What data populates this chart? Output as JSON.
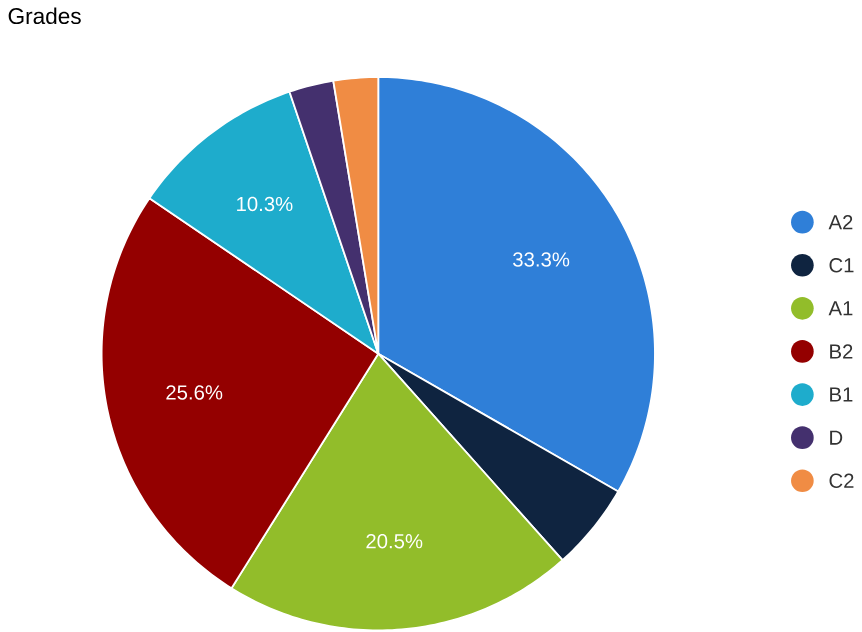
{
  "chart_data": {
    "type": "pie",
    "title": "Grades",
    "categories": [
      "A2",
      "C1",
      "A1",
      "B2",
      "B1",
      "D",
      "C2"
    ],
    "values": [
      33.3,
      5.1,
      20.5,
      25.6,
      10.3,
      2.6,
      2.6
    ],
    "value_labels": [
      "33.3%",
      null,
      "20.5%",
      "25.6%",
      "10.3%",
      null,
      null
    ],
    "colors": [
      "#2f7fd8",
      "#0f2440",
      "#92bd2a",
      "#940000",
      "#1eaccc",
      "#44306e",
      "#f08c44"
    ],
    "legend": "right"
  }
}
